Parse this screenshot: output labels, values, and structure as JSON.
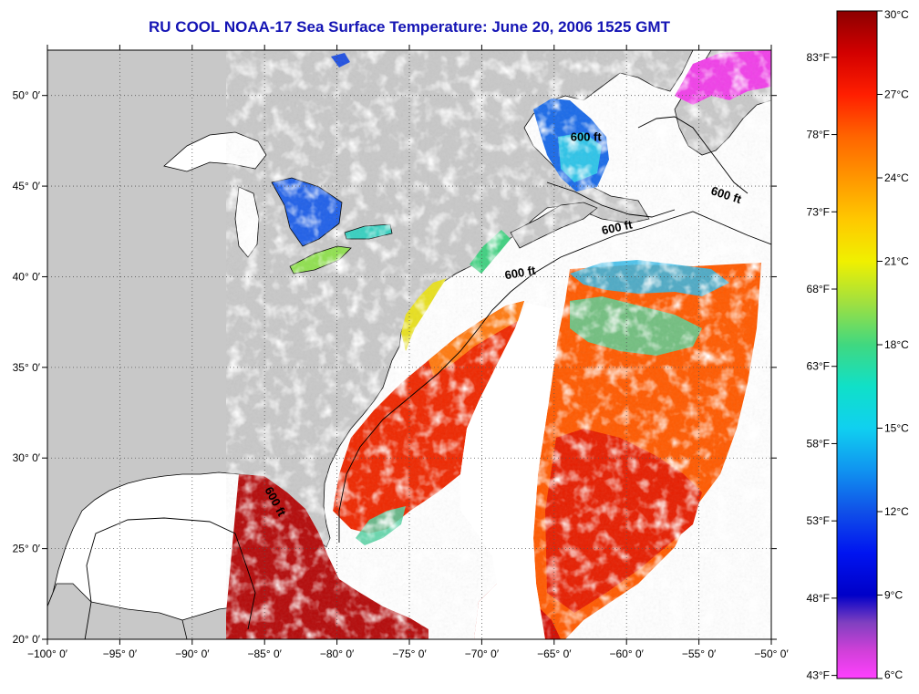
{
  "title": "RU COOL  NOAA-17  Sea Surface Temperature:  June 20, 2006 1525 GMT",
  "map": {
    "lon_range": [
      -100,
      -50
    ],
    "lat_range": [
      20,
      52.5
    ],
    "lon_ticks": [
      {
        "value": -100,
        "label": "−100° 0′"
      },
      {
        "value": -95,
        "label": "−95° 0′"
      },
      {
        "value": -90,
        "label": "−90° 0′"
      },
      {
        "value": -85,
        "label": "−85° 0′"
      },
      {
        "value": -80,
        "label": "−80° 0′"
      },
      {
        "value": -75,
        "label": "−75° 0′"
      },
      {
        "value": -70,
        "label": "−70° 0′"
      },
      {
        "value": -65,
        "label": "−65° 0′"
      },
      {
        "value": -60,
        "label": "−60° 0′"
      },
      {
        "value": -55,
        "label": "−55° 0′"
      },
      {
        "value": -50,
        "label": "−50° 0′"
      }
    ],
    "lat_ticks": [
      {
        "value": 20,
        "label": "20° 0′"
      },
      {
        "value": 25,
        "label": "25° 0′"
      },
      {
        "value": 30,
        "label": "30° 0′"
      },
      {
        "value": 35,
        "label": "35° 0′"
      },
      {
        "value": 40,
        "label": "40° 0′"
      },
      {
        "value": 45,
        "label": "45° 0′"
      },
      {
        "value": 50,
        "label": "50° 0′"
      }
    ],
    "grid": "dotted",
    "colors": {
      "land": "#c8c8c8",
      "no_data": "#ffffff",
      "coast": "#000000"
    },
    "contour_labels": [
      {
        "text": "600 ft",
        "lon": -62.8,
        "lat": 47.5,
        "rotate": 0
      },
      {
        "text": "600 ft",
        "lon": -53.2,
        "lat": 44.3,
        "rotate": 18
      },
      {
        "text": "600 ft",
        "lon": -60.6,
        "lat": 42.5,
        "rotate": -12
      },
      {
        "text": "600 ft",
        "lon": -67.3,
        "lat": 40.0,
        "rotate": -10
      },
      {
        "text": "600 ft",
        "lon": -84.5,
        "lat": 27.5,
        "rotate": 62
      }
    ]
  },
  "colorbar": {
    "celsius": [
      {
        "value": 30,
        "label": "30°C"
      },
      {
        "value": 27,
        "label": "27°C"
      },
      {
        "value": 24,
        "label": "24°C"
      },
      {
        "value": 21,
        "label": "21°C"
      },
      {
        "value": 18,
        "label": "18°C"
      },
      {
        "value": 15,
        "label": "15°C"
      },
      {
        "value": 12,
        "label": "12°C"
      },
      {
        "value": 9,
        "label": "9°C"
      },
      {
        "value": 6,
        "label": "6°C"
      }
    ],
    "fahrenheit": [
      {
        "value": 83,
        "label": "83°F"
      },
      {
        "value": 78,
        "label": "78°F"
      },
      {
        "value": 73,
        "label": "73°F"
      },
      {
        "value": 68,
        "label": "68°F"
      },
      {
        "value": 63,
        "label": "63°F"
      },
      {
        "value": 58,
        "label": "58°F"
      },
      {
        "value": 53,
        "label": "53°F"
      },
      {
        "value": 48,
        "label": "48°F"
      },
      {
        "value": 43,
        "label": "43°F"
      }
    ],
    "range_c": [
      6,
      30
    ],
    "stops": [
      {
        "value": 30,
        "color": "#8c0000"
      },
      {
        "value": 28.5,
        "color": "#d20000"
      },
      {
        "value": 27,
        "color": "#ff1e00"
      },
      {
        "value": 25.5,
        "color": "#ff6400"
      },
      {
        "value": 24,
        "color": "#ff9600"
      },
      {
        "value": 22.5,
        "color": "#ffc800"
      },
      {
        "value": 21,
        "color": "#f0f000"
      },
      {
        "value": 19.5,
        "color": "#a0e040"
      },
      {
        "value": 18,
        "color": "#40d880"
      },
      {
        "value": 16.5,
        "color": "#10e0c8"
      },
      {
        "value": 15,
        "color": "#10d0f0"
      },
      {
        "value": 13.5,
        "color": "#1094f0"
      },
      {
        "value": 12,
        "color": "#1050e8"
      },
      {
        "value": 10.5,
        "color": "#0014f0"
      },
      {
        "value": 9,
        "color": "#0000c8"
      },
      {
        "value": 8,
        "color": "#8040c0"
      },
      {
        "value": 7,
        "color": "#d040d8"
      },
      {
        "value": 6,
        "color": "#ff40ff"
      }
    ]
  }
}
